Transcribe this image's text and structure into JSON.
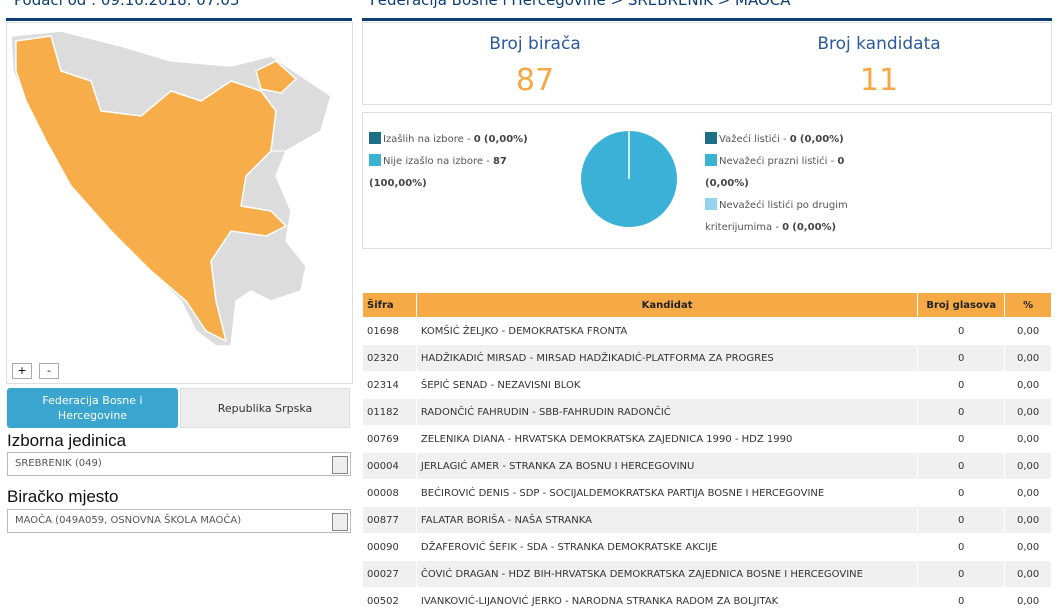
{
  "header": {
    "updated": "Podaci od : 09.10.2018. 07:05",
    "breadcrumb": "Federacija Bosne i Hercegovine > SREBRENIK > MAOČA"
  },
  "map": {
    "zoom_in": "+",
    "zoom_out": "-"
  },
  "tabs": [
    "Federacija Bosne i Hercegovine",
    "Republika Srpska"
  ],
  "filters": [
    {
      "label": "Izborna jedinica",
      "selected": "SREBRENIK (049)"
    },
    {
      "label": "Biračko mjesto",
      "selected": "MAOČA (049A059, OSNOVNA ŠKOLA MAOČA)"
    }
  ],
  "stats": [
    {
      "label": "Broj birača",
      "value": 87
    },
    {
      "label": "Broj kandidata",
      "value": 11
    }
  ],
  "turnout": {
    "items": [
      {
        "label": "Izašlih na izbore",
        "count": 0,
        "percent": "(0,00%)",
        "color": "#1c6f86"
      },
      {
        "label": "Nije izašlo na izbore",
        "count": 87,
        "percent": "(100,00%)",
        "color": "#3cb1d8"
      }
    ]
  },
  "ballots": {
    "items": [
      {
        "label": "Važeći listići",
        "count": 0,
        "percent": "(0,00%)",
        "color": "#1c6f86"
      },
      {
        "label": "Nevažeći prazni listići",
        "count": 0,
        "percent": "(0,00%)",
        "color": "#3cb1d8"
      },
      {
        "label": "Nevažeći listići po drugim kriterijumima",
        "count": 0,
        "percent": "(0,00%)",
        "color": "#93d4ec"
      }
    ]
  },
  "table": {
    "columns": [
      "Šifra",
      "Kandidat",
      "Broj glasova",
      "%"
    ],
    "rows": [
      [
        "01698",
        "KOMŠIĆ ŽELJKO - DEMOKRATSKA FRONTA",
        0,
        "0,00"
      ],
      [
        "02320",
        "HADŽIKADIĆ MIRSAD - MIRSAD HADŽIKADIĆ-PLATFORMA ZA PROGRES",
        0,
        "0,00"
      ],
      [
        "02314",
        "ŠEPIĆ SENAD - NEZAVISNI BLOK",
        0,
        "0,00"
      ],
      [
        "01182",
        "RADONČIĆ FAHRUDIN - SBB-FAHRUDIN RADONČIĆ",
        0,
        "0,00"
      ],
      [
        "00769",
        "ZELENIKA DIANA - HRVATSKA DEMOKRATSKA ZAJEDNICA 1990 - HDZ 1990",
        0,
        "0,00"
      ],
      [
        "00004",
        "JERLAGIĆ AMER - STRANKA ZA BOSNU I HERCEGOVINU",
        0,
        "0,00"
      ],
      [
        "00008",
        "BEĆIROVIĆ DENIS - SDP - SOCIJALDEMOKRATSKA PARTIJA BOSNE I HERCEGOVINE",
        0,
        "0,00"
      ],
      [
        "00877",
        "FALATAR BORIŠA - NAŠA STRANKA",
        0,
        "0,00"
      ],
      [
        "00090",
        "DŽAFEROVIĆ ŠEFIK - SDA - STRANKA DEMOKRATSKE AKCIJE",
        0,
        "0,00"
      ],
      [
        "00027",
        "ČOVIĆ DRAGAN - HDZ BIH-HRVATSKA DEMOKRATSKA ZAJEDNICA BOSNE I HERCEGOVINE",
        0,
        "0,00"
      ],
      [
        "00502",
        "IVANKOVIĆ-LIJANOVIĆ JERKO - NARODNA STRANKA RADOM ZA BOLJITAK",
        0,
        "0,00"
      ]
    ]
  }
}
